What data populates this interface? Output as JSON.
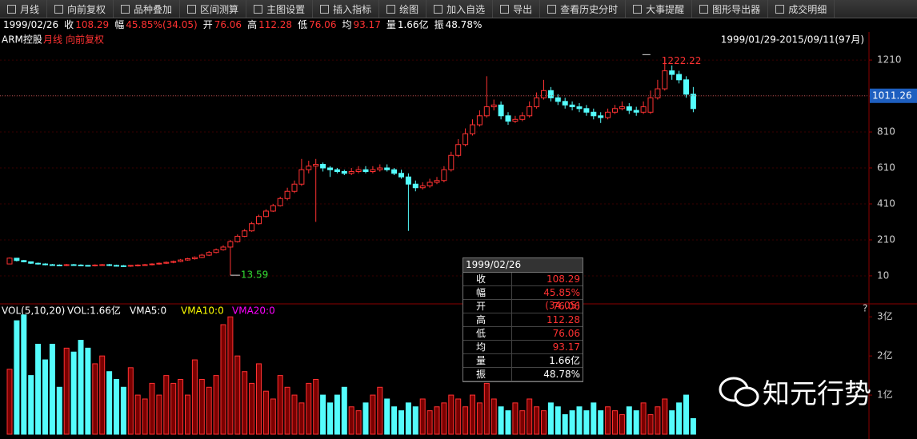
{
  "toolbar": [
    "月线",
    "向前复权",
    "品种叠加",
    "区间测算",
    "主图设置",
    "插入指标",
    "绘图",
    "加入自选",
    "导出",
    "查看历史分时",
    "大事提醒",
    "图形导出器",
    "成交明细"
  ],
  "info_bar": {
    "date": "1999/02/26",
    "items": [
      {
        "label": "收",
        "value": "108.29"
      },
      {
        "label": "幅",
        "value": "45.85%(34.05)"
      },
      {
        "label": "开",
        "value": "76.06"
      },
      {
        "label": "高",
        "value": "112.28"
      },
      {
        "label": "低",
        "value": "76.06"
      },
      {
        "label": "均",
        "value": "93.17"
      },
      {
        "label": "量",
        "value": "1.66亿"
      },
      {
        "label": "振",
        "value": "48.78%"
      }
    ]
  },
  "watermark": "知元行势",
  "chart_data": [
    {
      "type": "candlestick",
      "title": "ARM控股",
      "labels": [
        "月线",
        "向前复权"
      ],
      "range": "1999/01/29-2015/09/11(97月)",
      "up_color": "#ff3232",
      "down_color": "#54fcfc",
      "current_price": 1011.26,
      "open": [
        76.06,
        108,
        95,
        88,
        80,
        76,
        72,
        70,
        68,
        72,
        70,
        68,
        66,
        70,
        72,
        68,
        66,
        65,
        68,
        70,
        72,
        76,
        80,
        85,
        90,
        98,
        105,
        112,
        125,
        140,
        155,
        170,
        200,
        230,
        260,
        300,
        340,
        370,
        400,
        440,
        480,
        520,
        600,
        620,
        630,
        610,
        600,
        590,
        580,
        590,
        600,
        590,
        600,
        610,
        600,
        580,
        560,
        520,
        500,
        510,
        530,
        540,
        600,
        680,
        740,
        800,
        850,
        900,
        950,
        960,
        900,
        870,
        880,
        900,
        950,
        1000,
        1040,
        1000,
        980,
        960,
        950,
        940,
        920,
        900,
        890,
        920,
        940,
        950,
        930,
        920,
        920,
        1000,
        1050,
        1150,
        1130,
        1100,
        1020
      ],
      "high": [
        112.28,
        110,
        98,
        90,
        84,
        80,
        76,
        74,
        76,
        76,
        74,
        70,
        74,
        76,
        76,
        72,
        70,
        70,
        74,
        76,
        80,
        84,
        90,
        95,
        104,
        110,
        118,
        132,
        148,
        162,
        180,
        210,
        240,
        270,
        310,
        350,
        380,
        410,
        450,
        500,
        540,
        660,
        650,
        660,
        640,
        620,
        610,
        600,
        610,
        620,
        620,
        620,
        630,
        630,
        610,
        600,
        580,
        540,
        530,
        550,
        560,
        620,
        700,
        770,
        830,
        880,
        930,
        1120,
        990,
        980,
        920,
        900,
        920,
        980,
        1030,
        1100,
        1060,
        1020,
        1000,
        980,
        970,
        960,
        940,
        920,
        940,
        960,
        980,
        970,
        950,
        980,
        1040,
        1100,
        1222.22,
        1180,
        1150,
        1120,
        1060
      ],
      "low": [
        76.06,
        90,
        85,
        76,
        72,
        68,
        66,
        64,
        64,
        66,
        64,
        62,
        62,
        66,
        64,
        62,
        60,
        60,
        62,
        66,
        68,
        72,
        76,
        80,
        86,
        94,
        100,
        108,
        120,
        135,
        150,
        13.59,
        195,
        225,
        255,
        295,
        335,
        365,
        395,
        430,
        470,
        510,
        580,
        310,
        590,
        560,
        580,
        570,
        570,
        580,
        580,
        580,
        590,
        590,
        570,
        550,
        260,
        480,
        490,
        500,
        520,
        530,
        590,
        670,
        730,
        790,
        840,
        890,
        930,
        880,
        850,
        860,
        870,
        890,
        940,
        990,
        980,
        960,
        940,
        930,
        920,
        900,
        880,
        860,
        880,
        910,
        930,
        910,
        900,
        910,
        910,
        990,
        1040,
        1100,
        1080,
        1000,
        920
      ],
      "close": [
        108.29,
        95,
        88,
        80,
        76,
        72,
        70,
        68,
        72,
        70,
        68,
        66,
        70,
        72,
        68,
        66,
        65,
        68,
        70,
        72,
        76,
        80,
        85,
        90,
        98,
        105,
        112,
        125,
        140,
        155,
        170,
        200,
        230,
        260,
        300,
        340,
        370,
        400,
        440,
        480,
        520,
        600,
        620,
        630,
        610,
        600,
        590,
        580,
        590,
        600,
        590,
        600,
        610,
        600,
        580,
        560,
        520,
        500,
        510,
        530,
        540,
        600,
        680,
        740,
        800,
        850,
        900,
        950,
        960,
        900,
        870,
        880,
        900,
        950,
        1000,
        1040,
        1000,
        980,
        960,
        950,
        940,
        920,
        900,
        890,
        920,
        940,
        950,
        930,
        920,
        950,
        1000,
        1050,
        1150,
        1130,
        1100,
        1020,
        940
      ],
      "ylim": [
        -137,
        1366
      ],
      "yticks": [
        10,
        210,
        410,
        610,
        810,
        1010,
        1210
      ],
      "grid": true
    },
    {
      "type": "bar",
      "title": "VOL(5,10,20)",
      "help": "?",
      "legend": [
        {
          "text": "VOL:1.66亿",
          "color": "#ffffff"
        },
        {
          "text": "VMA5:0",
          "color": "#ffffff"
        },
        {
          "text": "VMA10:0",
          "color": "#ffff00"
        },
        {
          "text": "VMA20:0",
          "color": "#ff00ff"
        }
      ],
      "values": [
        1.66,
        2.9,
        3.05,
        1.5,
        2.3,
        1.9,
        2.3,
        1.2,
        2.2,
        2.1,
        2.4,
        2.2,
        1.8,
        2.0,
        1.6,
        1.4,
        1.2,
        1.7,
        1.0,
        0.9,
        1.3,
        1.0,
        1.5,
        1.3,
        1.4,
        1.0,
        1.9,
        1.4,
        1.2,
        1.5,
        2.8,
        3.0,
        2.0,
        1.6,
        1.3,
        1.8,
        1.1,
        0.9,
        1.5,
        1.2,
        1.0,
        0.8,
        1.3,
        1.4,
        1.0,
        0.8,
        1.0,
        1.2,
        0.7,
        0.6,
        0.8,
        1.0,
        1.2,
        0.9,
        0.7,
        0.6,
        0.8,
        0.7,
        0.9,
        0.6,
        0.7,
        0.8,
        1.0,
        0.9,
        0.7,
        1.0,
        0.8,
        1.3,
        0.9,
        0.7,
        0.6,
        0.8,
        0.6,
        0.9,
        0.7,
        0.6,
        0.8,
        0.7,
        0.5,
        0.6,
        0.7,
        0.6,
        0.8,
        0.6,
        0.7,
        0.6,
        0.5,
        0.7,
        0.6,
        0.8,
        0.5,
        0.7,
        0.9,
        0.6,
        0.8,
        1.0,
        0.4
      ],
      "ylim": [
        0,
        3.27
      ],
      "yticks": [
        {
          "value": 1,
          "label": "1亿"
        },
        {
          "value": 2,
          "label": "2亿"
        },
        {
          "value": 3,
          "label": "3亿"
        }
      ]
    }
  ]
}
